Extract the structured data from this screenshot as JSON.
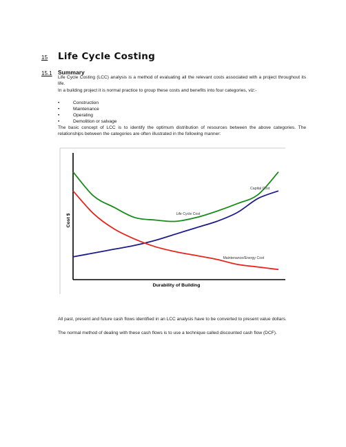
{
  "section": {
    "number": "15",
    "title": "Life Cycle Costing"
  },
  "subsection": {
    "number": "15.1",
    "title": "Summary"
  },
  "paragraphs": {
    "p1": "Life Cycle Costing (LCC) analysis is a method of evaluating all the relevant costs associated with a project throughout its life.",
    "p2": "In a building project it is normal practice to group these costs and benefits into four categories, viz:-",
    "p3": "The basic concept of LCC is to identify the optimum distribution of resources between the above categories. The relationships between the categories are often illustrated in the following manner:",
    "p4": "All past, present and future cash flows identified in an LCC analysis have to be converted to present value dollars.",
    "p5": "The normal method of dealing with these cash flows is to use a technique called discounted cash flow (DCF)."
  },
  "categories": [
    "Construction",
    "Maintenance",
    "Operating",
    "Demolition or salvage"
  ],
  "chart_data": {
    "type": "line",
    "xlabel": "Durability of Building",
    "ylabel": "Cost $",
    "annotations": [
      "Life Cycle Cost",
      "Capital Cost",
      "Maintenance/Energy Cost"
    ],
    "series": [
      {
        "name": "Life Cycle Cost",
        "color": "#1a8a1a",
        "x": [
          0,
          1,
          2,
          3,
          4,
          5,
          6,
          7,
          8,
          9,
          10
        ],
        "y": [
          85,
          66,
          57,
          49,
          47,
          46,
          49,
          54,
          60,
          67,
          85
        ]
      },
      {
        "name": "Capital Cost",
        "color": "#1a1a8c",
        "x": [
          0,
          1,
          2,
          3,
          4,
          5,
          6,
          7,
          8,
          9,
          10
        ],
        "y": [
          18,
          21,
          24,
          27,
          31,
          36,
          41,
          46,
          53,
          64,
          70
        ]
      },
      {
        "name": "Maintenance/Energy Cost",
        "color": "#e8231a",
        "x": [
          0,
          1,
          2,
          3,
          4,
          5,
          6,
          7,
          8,
          9,
          10
        ],
        "y": [
          70,
          52,
          40,
          32,
          26,
          22,
          19,
          16,
          12,
          10,
          8
        ]
      }
    ],
    "xlim": [
      0,
      10
    ],
    "ylim": [
      0,
      100
    ],
    "grid": false,
    "legend": "none"
  }
}
